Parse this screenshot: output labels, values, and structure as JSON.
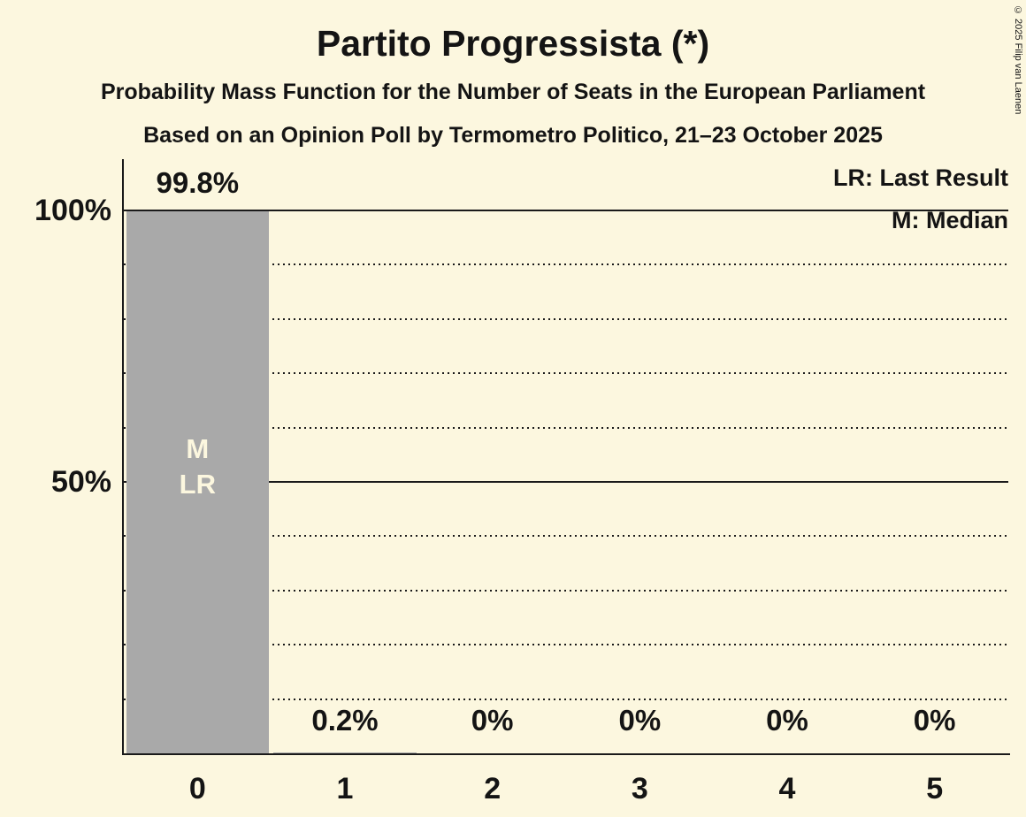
{
  "title": "Partito Progressista (*)",
  "subtitle": "Probability Mass Function for the Number of Seats in the European Parliament",
  "subsubtitle": "Based on an Opinion Poll by Termometro Politico, 21–23 October 2025",
  "copyright": "© 2025 Filip van Laenen",
  "legend": {
    "lr_label": "LR: Last Result",
    "m_label": "M: Median"
  },
  "colors": {
    "background": "#FCF7DF",
    "bar": "#A9A9A9",
    "text": "#141414",
    "bar_text": "#FCF7DF"
  },
  "chart_data": {
    "type": "bar",
    "title": "Partito Progressista (*)",
    "categories": [
      "0",
      "1",
      "2",
      "3",
      "4",
      "5"
    ],
    "values": [
      99.8,
      0.2,
      0,
      0,
      0,
      0
    ],
    "value_labels": [
      "99.8%",
      "0.2%",
      "0%",
      "0%",
      "0%",
      "0%"
    ],
    "bar_annotations": [
      [
        "M",
        "LR"
      ],
      [],
      [],
      [],
      [],
      []
    ],
    "xlabel": "",
    "ylabel": "",
    "ylim": [
      0,
      100
    ],
    "yticks": [
      {
        "value": 100,
        "label": "100%"
      },
      {
        "value": 50,
        "label": "50%"
      }
    ],
    "solid_gridlines": [
      100,
      50
    ],
    "dotted_gridlines": [
      90,
      80,
      70,
      60,
      40,
      30,
      20,
      10
    ],
    "grid": true,
    "legend_position": "top-right"
  }
}
